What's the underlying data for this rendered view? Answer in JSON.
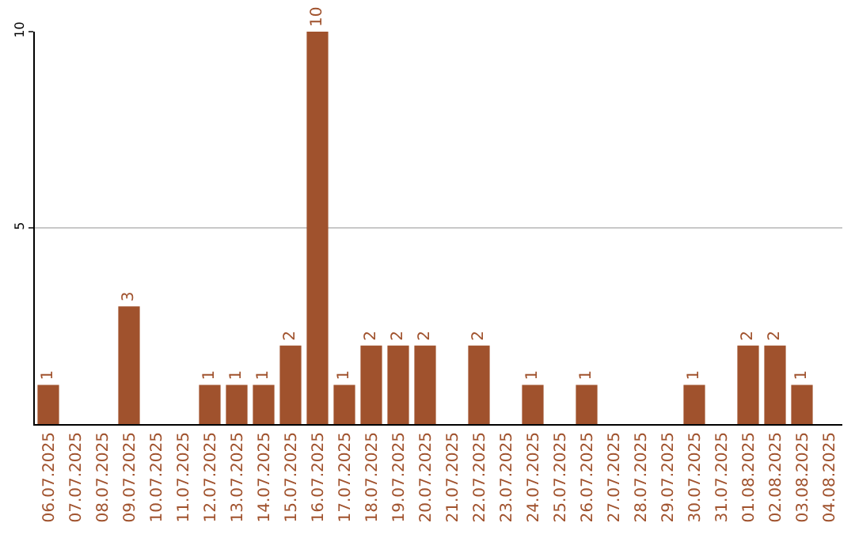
{
  "chart_data": {
    "type": "bar",
    "categories": [
      "06.07.2025",
      "07.07.2025",
      "08.07.2025",
      "09.07.2025",
      "10.07.2025",
      "11.07.2025",
      "12.07.2025",
      "13.07.2025",
      "14.07.2025",
      "15.07.2025",
      "16.07.2025",
      "17.07.2025",
      "18.07.2025",
      "19.07.2025",
      "20.07.2025",
      "21.07.2025",
      "22.07.2025",
      "23.07.2025",
      "24.07.2025",
      "25.07.2025",
      "26.07.2025",
      "27.07.2025",
      "28.07.2025",
      "29.07.2025",
      "30.07.2025",
      "31.07.2025",
      "01.08.2025",
      "02.08.2025",
      "03.08.2025",
      "04.08.2025"
    ],
    "values": [
      1,
      0,
      0,
      3,
      0,
      0,
      1,
      1,
      1,
      2,
      10,
      1,
      2,
      2,
      2,
      0,
      2,
      0,
      1,
      0,
      1,
      0,
      0,
      0,
      1,
      0,
      2,
      2,
      1,
      0
    ],
    "value_labels": [
      "1",
      null,
      null,
      "3",
      null,
      null,
      "1",
      "1",
      "1",
      "2",
      "10",
      "1",
      "2",
      "2",
      "2",
      null,
      "2",
      null,
      "1",
      null,
      "1",
      null,
      null,
      null,
      "1",
      null,
      "2",
      "2",
      "1",
      null
    ],
    "color": "#a0522d",
    "ylim": [
      0,
      10
    ],
    "yticks": [
      5,
      10
    ],
    "grid": "y"
  }
}
